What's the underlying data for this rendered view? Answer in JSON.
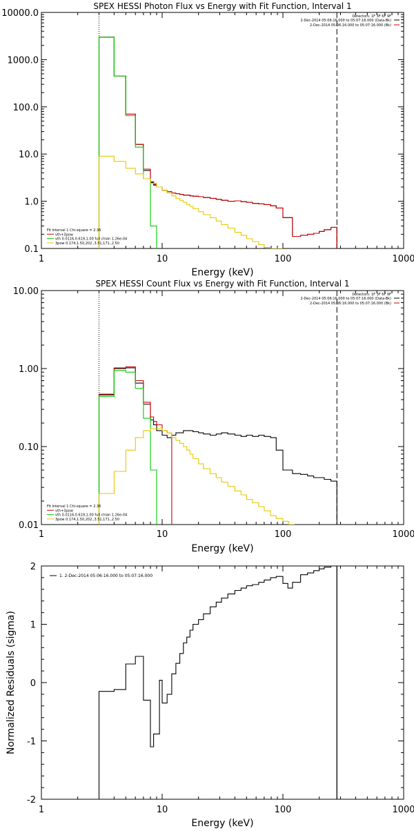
{
  "chart_data": [
    {
      "type": "line",
      "title": "SPEX HESSI Photon Flux vs Energy with Fit Function, Interval 1",
      "xlabel": "Energy (keV)",
      "ylabel": "",
      "xscale": "log",
      "yscale": "log",
      "xlim": [
        1,
        1000
      ],
      "ylim": [
        0.1,
        10000
      ],
      "x_tick_labels": [
        "1",
        "10",
        "100",
        "1000"
      ],
      "y_tick_labels": [
        "10000.0",
        "1000.0",
        "100.0",
        "10.0",
        "1.0",
        "0.1"
      ],
      "vlines": [
        {
          "x": 3,
          "style": "dotted"
        },
        {
          "x": 280,
          "style": "dashed"
        }
      ],
      "legend_topright": [
        {
          "text": "Detectors: 1F 3F 6F 9F",
          "color": "#000000"
        },
        {
          "text": "2-Dec-2014 05:06:16.000 to 05:07:16.000 (Data-Bk)",
          "color": "#000000"
        },
        {
          "text": "2-Dec-2014 05:06:16.000 to 05:07:16.000 (Bk)",
          "color": "#cc0000"
        }
      ],
      "legend_bottomleft": [
        {
          "text": "Fit Interval 1   Chi-square = 2.36",
          "color": "#000000",
          "line": false
        },
        {
          "text": "vth+3pow",
          "color": "#cc0000",
          "line": true
        },
        {
          "text": "vth 0.0116,0.619,1.00  full chian 1.26e-04",
          "color": "#00cc00",
          "line": true
        },
        {
          "text": "3pow 0.174,1.50,202.,3.51,171.,2.50",
          "color": "#e6c800",
          "line": true
        }
      ],
      "series": [
        {
          "color": "#000000",
          "edges": [
            3,
            3.5,
            4,
            4.5,
            5,
            5.5,
            6,
            6.5,
            7,
            7.5,
            8,
            8.5,
            9,
            10,
            11,
            12,
            13,
            14,
            15,
            16,
            17,
            18,
            20,
            22,
            25,
            28,
            31,
            35,
            40,
            45,
            50,
            56,
            63,
            70,
            79,
            88,
            100,
            120,
            140,
            160,
            180,
            200,
            220,
            250,
            280
          ],
          "values": [
            3000,
            3000,
            450,
            450,
            70,
            70,
            16,
            16,
            4.5,
            4.5,
            2.5,
            2.2,
            2.0,
            1.7,
            1.6,
            1.5,
            1.45,
            1.4,
            1.35,
            1.35,
            1.3,
            1.28,
            1.25,
            1.2,
            1.15,
            1.1,
            1.05,
            1.0,
            1.02,
            0.98,
            0.95,
            0.9,
            0.88,
            0.85,
            0.8,
            0.72,
            0.45,
            0.18,
            0.19,
            0.2,
            0.21,
            0.23,
            0.25,
            0.28
          ]
        },
        {
          "color": "#cc0000",
          "edges": [
            3,
            4,
            5,
            6,
            6.5,
            7,
            7.5,
            8,
            8.5,
            9,
            10,
            11,
            12,
            13,
            14,
            15,
            16,
            17,
            18,
            20,
            22,
            25,
            28,
            31,
            35,
            40,
            45,
            50,
            56,
            63,
            70,
            79,
            88,
            100,
            120,
            140,
            160,
            180,
            200,
            220,
            250,
            280
          ],
          "values": [
            3000,
            450,
            70,
            16,
            16,
            4.8,
            4.8,
            2.6,
            2.3,
            2.0,
            1.7,
            1.6,
            1.5,
            1.45,
            1.4,
            1.35,
            1.35,
            1.3,
            1.28,
            1.25,
            1.2,
            1.15,
            1.1,
            1.05,
            1.0,
            1.02,
            0.98,
            0.95,
            0.9,
            0.88,
            0.85,
            0.8,
            0.72,
            0.45,
            0.18,
            0.19,
            0.2,
            0.21,
            0.23,
            0.25,
            0.28
          ]
        },
        {
          "color": "#00cc00",
          "edges": [
            3,
            4,
            5,
            6,
            7,
            8,
            9
          ],
          "values": [
            3000,
            450,
            65,
            14,
            3.0,
            0.3
          ]
        },
        {
          "color": "#e6c800",
          "edges": [
            3,
            4,
            5,
            6,
            7,
            8,
            9,
            10,
            11,
            12,
            13,
            14,
            15,
            16,
            17,
            18,
            20,
            22,
            25,
            28,
            31,
            35,
            40,
            45,
            50,
            56,
            63,
            70,
            79,
            88,
            100
          ],
          "values": [
            9.0,
            7.0,
            5.0,
            3.8,
            3.0,
            2.4,
            2.0,
            1.7,
            1.5,
            1.3,
            1.15,
            1.05,
            0.95,
            0.85,
            0.78,
            0.7,
            0.6,
            0.52,
            0.45,
            0.38,
            0.32,
            0.27,
            0.22,
            0.19,
            0.16,
            0.14,
            0.12,
            0.105,
            0.1,
            0.1
          ]
        }
      ]
    },
    {
      "type": "line",
      "title": "SPEX HESSI Count Flux vs Energy with Fit Function, Interval 1",
      "xlabel": "Energy (keV)",
      "ylabel": "",
      "xscale": "log",
      "yscale": "log",
      "xlim": [
        1,
        1000
      ],
      "ylim": [
        0.01,
        10
      ],
      "x_tick_labels": [
        "1",
        "10",
        "100",
        "1000"
      ],
      "y_tick_labels": [
        "10.00",
        "1.00",
        "0.10",
        "0.01"
      ],
      "vlines": [
        {
          "x": 3,
          "style": "dotted"
        },
        {
          "x": 280,
          "style": "dashed"
        }
      ],
      "legend_topright": [
        {
          "text": "Detectors: 1F 3F 6F 9F",
          "color": "#000000"
        },
        {
          "text": "2-Dec-2014 05:06:16.000 to 05:07:16.000 (Data-Bk)",
          "color": "#000000"
        },
        {
          "text": "2-Dec-2014 05:06:16.000 to 05:07:16.000 (Bk)",
          "color": "#cc0000"
        }
      ],
      "legend_bottomleft": [
        {
          "text": "Fit Interval 1   Chi-square = 2.36",
          "color": "#000000",
          "line": false
        },
        {
          "text": "vth+3pow",
          "color": "#cc0000",
          "line": true
        },
        {
          "text": "vth 0.0116,0.619,1.00  full chian 1.26e-04",
          "color": "#00cc00",
          "line": true
        },
        {
          "text": "3pow 0.174,1.50,202.,3.51,171.,2.50",
          "color": "#e6c800",
          "line": true
        }
      ],
      "series": [
        {
          "color": "#000000",
          "edges": [
            3,
            4,
            5,
            6,
            7,
            7.5,
            8,
            8.5,
            9,
            10,
            11,
            12,
            13,
            14,
            15,
            16,
            17,
            18,
            20,
            22,
            25,
            28,
            31,
            35,
            40,
            45,
            50,
            56,
            63,
            70,
            79,
            88,
            100,
            120,
            140,
            160,
            180,
            200,
            220,
            250,
            280
          ],
          "values": [
            0.46,
            1.0,
            1.02,
            0.65,
            0.35,
            0.35,
            0.22,
            0.19,
            0.16,
            0.14,
            0.13,
            0.14,
            0.15,
            0.15,
            0.16,
            0.16,
            0.16,
            0.155,
            0.15,
            0.145,
            0.14,
            0.145,
            0.15,
            0.145,
            0.14,
            0.135,
            0.14,
            0.135,
            0.14,
            0.135,
            0.13,
            0.09,
            0.05,
            0.045,
            0.044,
            0.042,
            0.04,
            0.04,
            0.038,
            0.036
          ]
        },
        {
          "color": "#cc0000",
          "edges": [
            3,
            4,
            5,
            6,
            7,
            7.5,
            8,
            8.5,
            9,
            10,
            11,
            12
          ],
          "values": [
            0.47,
            1.02,
            1.05,
            0.7,
            0.37,
            0.37,
            0.24,
            0.21,
            0.19,
            0.16,
            0.15
          ]
        },
        {
          "color": "#00cc00",
          "edges": [
            3,
            4,
            5,
            6,
            7,
            8,
            9
          ],
          "values": [
            0.44,
            0.95,
            0.9,
            0.56,
            0.23,
            0.05
          ]
        },
        {
          "color": "#e6c800",
          "edges": [
            3,
            4,
            5,
            6,
            7,
            8,
            9,
            10,
            11,
            12,
            13,
            14,
            15,
            16,
            17,
            18,
            20,
            22,
            25,
            28,
            31,
            35,
            40,
            45,
            50,
            56,
            63,
            70,
            79,
            88,
            100,
            112,
            125
          ],
          "values": [
            0.025,
            0.048,
            0.09,
            0.13,
            0.16,
            0.17,
            0.17,
            0.16,
            0.15,
            0.13,
            0.12,
            0.11,
            0.1,
            0.09,
            0.08,
            0.07,
            0.06,
            0.052,
            0.045,
            0.04,
            0.035,
            0.031,
            0.027,
            0.024,
            0.021,
            0.019,
            0.017,
            0.015,
            0.013,
            0.012,
            0.011,
            0.01
          ]
        }
      ]
    },
    {
      "type": "line",
      "title": "",
      "xlabel": "Energy (keV)",
      "ylabel": "Normalized Residuals (sigma)",
      "xscale": "log",
      "yscale": "linear",
      "xlim": [
        1,
        1000
      ],
      "ylim": [
        -2,
        2
      ],
      "x_tick_labels": [
        "1",
        "10",
        "100",
        "1000"
      ],
      "y_tick_labels": [
        "2",
        "1",
        "0",
        "-1",
        "-2"
      ],
      "vlines": [
        {
          "x": 280,
          "style": "solid"
        }
      ],
      "legend": [
        {
          "text": "1.  2-Dec-2014 05:06:16.000 to 05:07:16.000",
          "color": "#000000"
        }
      ],
      "series": [
        {
          "color": "#000000",
          "edges": [
            3,
            4,
            5,
            6,
            7,
            7.5,
            8,
            8.5,
            9,
            9.5,
            10,
            11,
            12,
            13,
            14,
            15,
            16,
            17,
            18,
            20,
            22,
            25,
            28,
            31,
            35,
            40,
            45,
            50,
            56,
            63,
            70,
            79,
            88,
            100,
            110,
            120,
            140,
            160,
            180,
            200,
            220,
            250,
            280
          ],
          "values": [
            -0.15,
            -0.12,
            0.32,
            0.45,
            -0.3,
            -0.3,
            -1.1,
            -0.88,
            -0.88,
            0.04,
            -0.35,
            -0.2,
            0.15,
            0.33,
            0.5,
            0.68,
            0.78,
            0.9,
            1.0,
            1.08,
            1.18,
            1.3,
            1.38,
            1.45,
            1.52,
            1.58,
            1.62,
            1.66,
            1.68,
            1.72,
            1.76,
            1.8,
            1.82,
            1.7,
            1.62,
            1.72,
            1.85,
            1.88,
            1.92,
            1.95,
            1.98,
            2.0
          ]
        }
      ]
    }
  ]
}
